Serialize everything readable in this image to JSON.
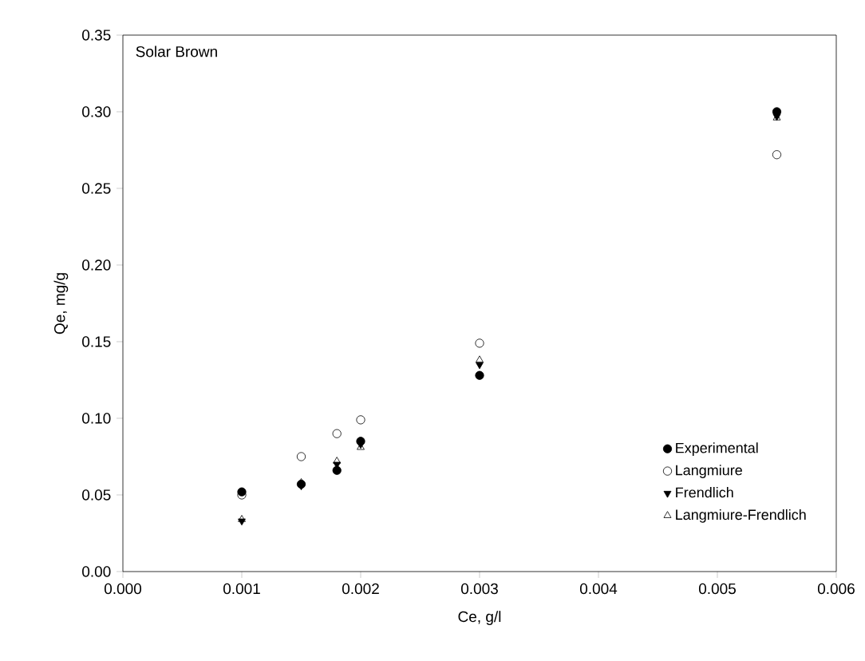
{
  "chart_data": {
    "type": "scatter",
    "xlabel": "Ce, g/l",
    "ylabel": "Qe, mg/g",
    "annotations": [
      "Solar Brown"
    ],
    "x": [
      0.001,
      0.0015,
      0.0018,
      0.002,
      0.003,
      0.0055
    ],
    "series": [
      {
        "name": "Experimental",
        "color": "#000000",
        "marker": "circle",
        "values": [
          0.052,
          0.057,
          0.066,
          0.085,
          0.128,
          0.3
        ]
      },
      {
        "name": "Langmiure",
        "color": "#000000",
        "marker": "circle-open",
        "values": [
          0.05,
          0.075,
          0.09,
          0.099,
          0.149,
          0.272
        ]
      },
      {
        "name": "Frendlich",
        "color": "#000000",
        "marker": "triangle-down",
        "values": [
          0.033,
          0.056,
          0.07,
          0.083,
          0.135,
          0.297
        ]
      },
      {
        "name": "Langmiure-Frendlich",
        "color": "#000000",
        "marker": "triangle-open",
        "values": [
          0.034,
          0.058,
          0.072,
          0.081,
          0.138,
          0.296
        ]
      }
    ],
    "xlim": [
      0,
      0.006
    ],
    "ylim": [
      0,
      0.35
    ],
    "xticks": [
      {
        "value": 0,
        "label": "0.000"
      },
      {
        "value": 0.001,
        "label": "0.001"
      },
      {
        "value": 0.002,
        "label": "0.002"
      },
      {
        "value": 0.003,
        "label": "0.003"
      },
      {
        "value": 0.004,
        "label": "0.004"
      },
      {
        "value": 0.005,
        "label": "0.005"
      },
      {
        "value": 0.006,
        "label": "0.006"
      }
    ],
    "yticks": [
      {
        "value": 0,
        "label": "0.00"
      },
      {
        "value": 0.05,
        "label": "0.05"
      },
      {
        "value": 0.1,
        "label": "0.10"
      },
      {
        "value": 0.15,
        "label": "0.15"
      },
      {
        "value": 0.2,
        "label": "0.20"
      },
      {
        "value": 0.25,
        "label": "0.25"
      },
      {
        "value": 0.3,
        "label": "0.30"
      },
      {
        "value": 0.35,
        "label": "0.35"
      }
    ],
    "grid": false,
    "legend": "bottom right"
  }
}
